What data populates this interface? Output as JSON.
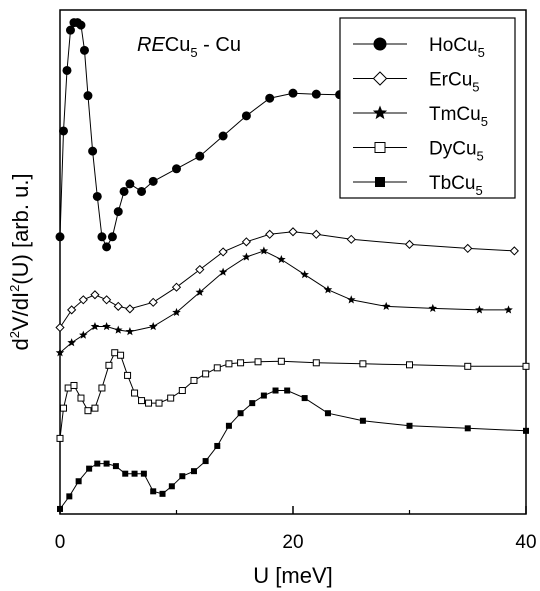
{
  "chart_data": {
    "type": "line",
    "title": "RECu5 - Cu",
    "title_parts": {
      "italic": "RE",
      "base": "Cu",
      "sub": "5",
      "rest": " - Cu"
    },
    "xlabel": "U [meV]",
    "ylabel": "d2V/dI2(U)  [arb. u.]",
    "ylabel_parts": {
      "a": "d",
      "sup1": "2",
      "b": "V/dI",
      "sup2": "2",
      "c": "(U)  [arb. u.]"
    },
    "xlim": [
      0,
      40
    ],
    "ylim": [
      0,
      10
    ],
    "x_ticks": [
      0,
      20,
      40
    ],
    "x_tick_labels": [
      "0",
      "20",
      "40"
    ],
    "legend_position": "top-right",
    "grid": false,
    "series": [
      {
        "name": "HoCu5",
        "label_base": "HoCu",
        "label_sub": "5",
        "marker": "filled-circle",
        "x": [
          0,
          0.3,
          0.6,
          0.9,
          1.2,
          1.5,
          1.8,
          2.1,
          2.4,
          2.8,
          3.2,
          3.6,
          4.0,
          4.5,
          5.0,
          5.5,
          6.0,
          7,
          8,
          10,
          12,
          14,
          16,
          18,
          20,
          22,
          24,
          25.5
        ],
        "y": [
          5.5,
          7.6,
          8.8,
          9.6,
          9.75,
          9.75,
          9.7,
          9.2,
          8.3,
          7.2,
          6.3,
          5.5,
          5.3,
          5.5,
          6.0,
          6.4,
          6.55,
          6.4,
          6.6,
          6.85,
          7.1,
          7.5,
          7.9,
          8.25,
          8.35,
          8.33,
          8.32,
          8.32
        ]
      },
      {
        "name": "ErCu5",
        "label_base": "ErCu",
        "label_sub": "5",
        "marker": "open-diamond",
        "x": [
          0,
          1,
          2,
          3,
          4,
          5,
          6,
          8,
          10,
          12,
          14,
          16,
          18,
          20,
          22,
          25,
          30,
          35,
          39
        ],
        "y": [
          3.7,
          4.05,
          4.25,
          4.35,
          4.25,
          4.12,
          4.07,
          4.2,
          4.5,
          4.85,
          5.2,
          5.4,
          5.55,
          5.6,
          5.55,
          5.45,
          5.35,
          5.27,
          5.22
        ]
      },
      {
        "name": "TmCu5",
        "label_base": "TmCu",
        "label_sub": "5",
        "marker": "filled-star",
        "x": [
          0,
          1,
          2,
          3,
          4,
          5,
          6,
          8,
          10,
          12,
          14,
          16,
          17.5,
          19,
          21,
          23,
          25,
          28,
          32,
          36,
          38.5
        ],
        "y": [
          3.2,
          3.4,
          3.55,
          3.72,
          3.72,
          3.65,
          3.62,
          3.72,
          4.0,
          4.4,
          4.8,
          5.1,
          5.22,
          5.05,
          4.75,
          4.45,
          4.25,
          4.12,
          4.08,
          4.05,
          4.05
        ]
      },
      {
        "name": "DyCu5",
        "label_base": "DyCu",
        "label_sub": "5",
        "marker": "open-square",
        "x": [
          0,
          0.3,
          0.7,
          1.2,
          1.8,
          2.4,
          3.0,
          3.6,
          4.2,
          4.7,
          5.2,
          5.8,
          6.4,
          7.0,
          7.6,
          8.5,
          9.5,
          10.5,
          11.5,
          12.5,
          13.5,
          14.5,
          15.5,
          17,
          19,
          22,
          26,
          30,
          35,
          40
        ],
        "y": [
          1.5,
          2.1,
          2.5,
          2.55,
          2.3,
          2.05,
          2.1,
          2.5,
          2.95,
          3.2,
          3.15,
          2.75,
          2.4,
          2.25,
          2.2,
          2.2,
          2.3,
          2.45,
          2.65,
          2.78,
          2.9,
          2.98,
          3.0,
          3.02,
          3.03,
          3.0,
          2.98,
          2.96,
          2.93,
          2.93
        ]
      },
      {
        "name": "TbCu5",
        "label_base": "TbCu",
        "label_sub": "5",
        "marker": "filled-square",
        "x": [
          0,
          0.8,
          1.6,
          2.5,
          3.2,
          4.0,
          4.8,
          5.6,
          6.4,
          7.2,
          8.0,
          8.8,
          9.6,
          10.5,
          11.5,
          12.5,
          13.5,
          14.5,
          15.5,
          16.5,
          17.5,
          18.5,
          19.5,
          21,
          23,
          26,
          30,
          35,
          40
        ],
        "y": [
          0.1,
          0.35,
          0.65,
          0.9,
          1.0,
          1.0,
          0.95,
          0.8,
          0.8,
          0.8,
          0.45,
          0.4,
          0.55,
          0.75,
          0.85,
          1.05,
          1.35,
          1.75,
          2.0,
          2.2,
          2.35,
          2.45,
          2.45,
          2.3,
          2.0,
          1.85,
          1.75,
          1.7,
          1.65
        ]
      }
    ]
  }
}
